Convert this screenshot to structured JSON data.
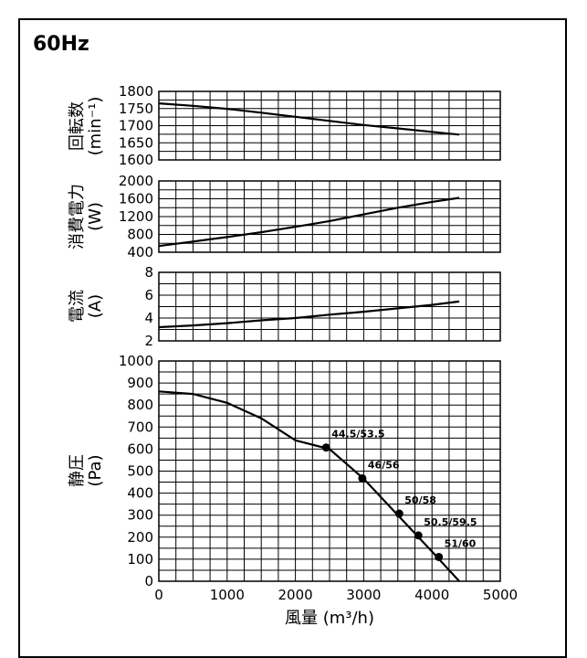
{
  "header": {
    "frequency": "60Hz"
  },
  "chart_data": [
    {
      "type": "line",
      "ylabel_main": "回転数",
      "ylabel_unit": "(min⁻¹)",
      "xlim": [
        0,
        5000
      ],
      "ylim": [
        1600,
        1800
      ],
      "yticks": [
        1600,
        1650,
        1700,
        1750,
        1800
      ],
      "grid": true,
      "series": [
        {
          "x": [
            0,
            500,
            1000,
            1500,
            2000,
            2500,
            3000,
            3500,
            4000,
            4400
          ],
          "y": [
            1765,
            1758,
            1749,
            1738,
            1726,
            1714,
            1702,
            1692,
            1682,
            1674
          ]
        }
      ]
    },
    {
      "type": "line",
      "ylabel_main": "消費電力",
      "ylabel_unit": "(W)",
      "xlim": [
        0,
        5000
      ],
      "ylim": [
        400,
        2000
      ],
      "yticks": [
        400,
        800,
        1200,
        1600,
        2000
      ],
      "grid": true,
      "series": [
        {
          "x": [
            0,
            500,
            1000,
            1500,
            2000,
            2500,
            3000,
            3500,
            4000,
            4400
          ],
          "y": [
            540,
            640,
            740,
            850,
            970,
            1100,
            1250,
            1400,
            1530,
            1620
          ]
        }
      ]
    },
    {
      "type": "line",
      "ylabel_main": "電流",
      "ylabel_unit": "(A)",
      "xlim": [
        0,
        5000
      ],
      "ylim": [
        2,
        8
      ],
      "yticks": [
        2,
        4,
        6,
        8
      ],
      "grid": true,
      "series": [
        {
          "x": [
            0,
            500,
            1000,
            1500,
            2000,
            2500,
            3000,
            3500,
            4000,
            4400
          ],
          "y": [
            3.2,
            3.35,
            3.55,
            3.8,
            4.0,
            4.3,
            4.55,
            4.85,
            5.15,
            5.45
          ]
        }
      ]
    },
    {
      "type": "line",
      "ylabel_main": "静圧",
      "ylabel_unit": "(Pa)",
      "xlabel": "風量 (m³/h)",
      "xlim": [
        0,
        5000
      ],
      "xticks": [
        0,
        1000,
        2000,
        3000,
        4000,
        5000
      ],
      "ylim": [
        0,
        1000
      ],
      "yticks": [
        0,
        100,
        200,
        300,
        400,
        500,
        600,
        700,
        800,
        900,
        1000
      ],
      "grid": true,
      "series": [
        {
          "x": [
            0,
            500,
            1000,
            1500,
            2000,
            2500,
            3000,
            3500,
            4000,
            4400
          ],
          "y": [
            862,
            850,
            810,
            740,
            640,
            600,
            465,
            300,
            135,
            0
          ]
        }
      ],
      "points": [
        {
          "x": 2450,
          "y": 607,
          "label": "44.5/53.5"
        },
        {
          "x": 2980,
          "y": 467,
          "label": "46/56"
        },
        {
          "x": 3520,
          "y": 307,
          "label": "50/58"
        },
        {
          "x": 3800,
          "y": 208,
          "label": "50.5/59.5"
        },
        {
          "x": 4100,
          "y": 110,
          "label": "51/60"
        }
      ]
    }
  ]
}
